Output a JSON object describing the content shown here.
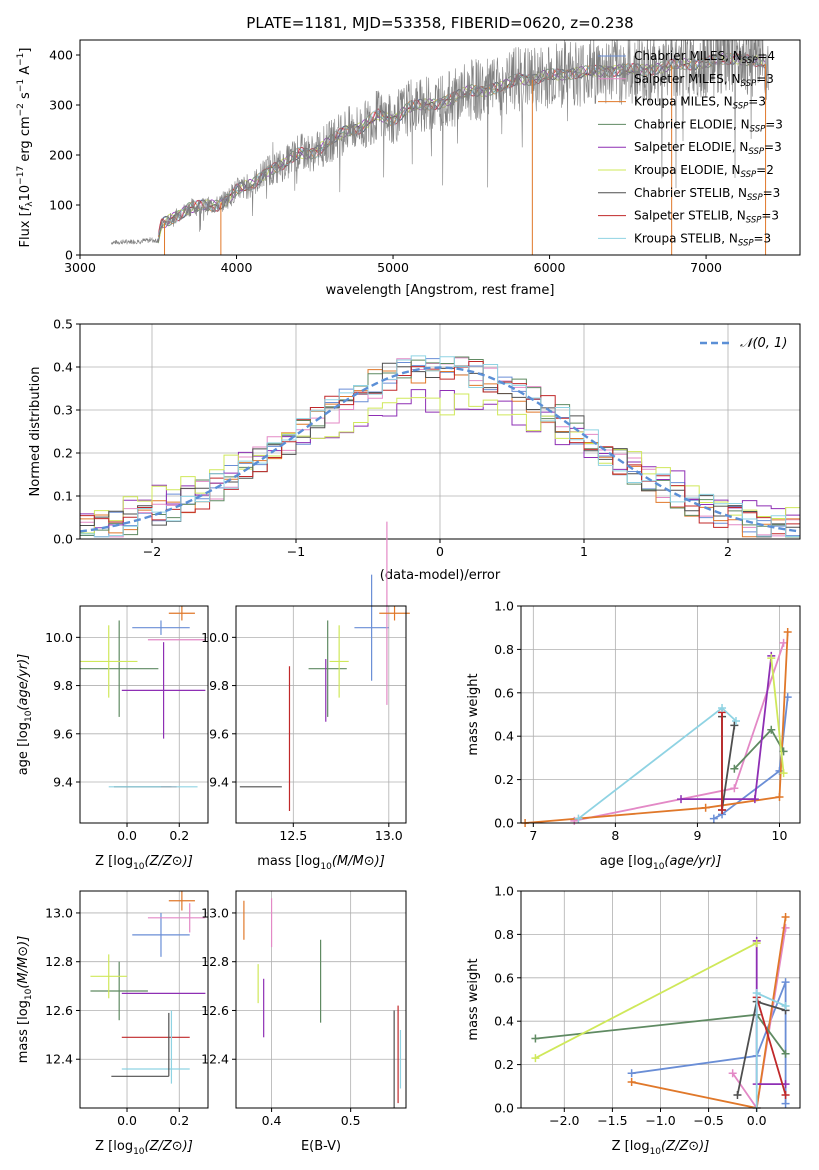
{
  "figure_title": "PLATE=1181, MJD=53358, FIBERID=0620, z=0.238",
  "colors": {
    "Chabrier MILES": "#6a8ed6",
    "Salpeter MILES": "#e389c6",
    "Kroupa MILES": "#e0782a",
    "Chabrier ELODIE": "#5f8a62",
    "Salpeter ELODIE": "#8e2fb4",
    "Kroupa ELODIE": "#cfe85a",
    "Chabrier STELIB": "#4f4f4f",
    "Salpeter STELIB": "#c0282a",
    "Kroupa STELIB": "#8fd3e3"
  },
  "chart_data": [
    {
      "id": "spectrum",
      "type": "line",
      "xlabel": "wavelength [Angstrom, rest frame]",
      "ylabel_parts": [
        "Flux [",
        "f",
        "λ",
        "10",
        "−17",
        " erg cm",
        "−2",
        " s",
        "−1",
        " A",
        "−1",
        "]"
      ],
      "xlim": [
        3000,
        7600
      ],
      "ylim": [
        0,
        430
      ],
      "xticks": [
        3000,
        4000,
        5000,
        6000,
        7000
      ],
      "yticks": [
        0,
        100,
        200,
        300,
        400
      ],
      "legend_position": "top-right",
      "series": [
        {
          "name": "Chabrier MILES",
          "nssp": "4"
        },
        {
          "name": "Salpeter MILES",
          "nssp": "3"
        },
        {
          "name": "Kroupa MILES",
          "nssp": "3"
        },
        {
          "name": "Chabrier ELODIE",
          "nssp": "3"
        },
        {
          "name": "Salpeter ELODIE",
          "nssp": "3"
        },
        {
          "name": "Kroupa ELODIE",
          "nssp": "2"
        },
        {
          "name": "Chabrier STELIB",
          "nssp": "3"
        },
        {
          "name": "Salpeter STELIB",
          "nssp": "3"
        },
        {
          "name": "Kroupa STELIB",
          "nssp": "3"
        }
      ],
      "observed_envelope": {
        "x": [
          3200,
          3500,
          3520,
          3700,
          3880,
          3950,
          4000,
          4100,
          4200,
          4300,
          4400,
          4500,
          4700,
          4800,
          4900,
          5000,
          5100,
          5200,
          5300,
          5400,
          5500,
          5600,
          5700,
          5800,
          5900,
          6000,
          6200,
          6400,
          6600,
          6800,
          7000,
          7200,
          7400
        ],
        "y": [
          25,
          30,
          60,
          95,
          100,
          115,
          130,
          140,
          170,
          180,
          205,
          205,
          250,
          255,
          280,
          270,
          295,
          300,
          305,
          315,
          330,
          330,
          335,
          355,
          350,
          360,
          365,
          370,
          370,
          380,
          385,
          395,
          380
        ]
      },
      "model_start_x": 3500,
      "model_end_x": 7380
    },
    {
      "id": "residuals",
      "type": "bar",
      "xlabel": "(data-model)/error",
      "ylabel": "Normed distribution",
      "xlim": [
        -2.5,
        2.5
      ],
      "ylim": [
        0,
        0.5
      ],
      "xticks": [
        -2,
        -1,
        0,
        1,
        2
      ],
      "xtick_labels": [
        "−2",
        "−1",
        "0",
        "1",
        "2"
      ],
      "yticks": [
        0.0,
        0.1,
        0.2,
        0.3,
        0.4,
        0.5
      ],
      "legend": "𝒩(0, 1)",
      "legend_position": "top-right",
      "gaussian": {
        "mean": 0,
        "sigma": 1
      }
    },
    {
      "id": "Z-age",
      "type": "scatter",
      "xlabel": "Z [log10(Z/Z⊙)]",
      "ylabel": "age  [log10(age/yr)]",
      "xlim": [
        -0.18,
        0.31
      ],
      "ylim": [
        9.23,
        10.13
      ],
      "xticks": [
        0.0,
        0.2
      ],
      "yticks": [
        9.4,
        9.6,
        9.8,
        10.0
      ],
      "points": [
        {
          "series": "Chabrier MILES",
          "x": 0.13,
          "y": 10.04,
          "xerr": 0.11,
          "yerr": 0.03
        },
        {
          "series": "Salpeter MILES",
          "x": 0.19,
          "y": 9.99,
          "xerr": 0.11,
          "yerr": 0.0
        },
        {
          "series": "Kroupa MILES",
          "x": 0.21,
          "y": 10.1,
          "xerr": 0.05,
          "yerr": 0.03
        },
        {
          "series": "Chabrier ELODIE",
          "x": -0.03,
          "y": 9.87,
          "xerr": 0.15,
          "yerr": 0.2
        },
        {
          "series": "Salpeter ELODIE",
          "x": 0.14,
          "y": 9.78,
          "xerr": 0.16,
          "yerr": 0.2
        },
        {
          "series": "Kroupa ELODIE",
          "x": -0.07,
          "y": 9.9,
          "xerr": 0.11,
          "yerr": 0.15
        },
        {
          "series": "Chabrier STELIB",
          "x": 0.06,
          "y": 9.38,
          "xerr": 0.11,
          "yerr": 0.0
        },
        {
          "series": "Salpeter STELIB",
          "x": 0.16,
          "y": 9.38,
          "xerr": 0.03,
          "yerr": 0.0
        },
        {
          "series": "Kroupa STELIB",
          "x": 0.1,
          "y": 9.38,
          "xerr": 0.17,
          "yerr": 0.0
        }
      ]
    },
    {
      "id": "mass-age",
      "type": "scatter",
      "xlabel": "mass [log10(M/M⊙)]",
      "ylabel": "",
      "xlim": [
        12.2,
        13.09
      ],
      "ylim": [
        9.23,
        10.13
      ],
      "xticks": [
        12.5,
        13.0
      ],
      "yticks": [
        9.4,
        9.6,
        9.8,
        10.0
      ],
      "points": [
        {
          "series": "Chabrier MILES",
          "x": 12.91,
          "y": 10.04,
          "xerr": 0.09,
          "yerr": 0.22
        },
        {
          "series": "Salpeter MILES",
          "x": 12.99,
          "y": 10.1,
          "xerr": 0.0,
          "yerr": 0.38
        },
        {
          "series": "Kroupa MILES",
          "x": 13.03,
          "y": 10.1,
          "xerr": 0.08,
          "yerr": 0.03
        },
        {
          "series": "Chabrier ELODIE",
          "x": 12.68,
          "y": 9.87,
          "xerr": 0.1,
          "yerr": 0.2
        },
        {
          "series": "Salpeter ELODIE",
          "x": 12.67,
          "y": 9.78,
          "xerr": 0.0,
          "yerr": 0.13
        },
        {
          "series": "Kroupa ELODIE",
          "x": 12.74,
          "y": 9.9,
          "xerr": 0.05,
          "yerr": 0.15
        },
        {
          "series": "Chabrier STELIB",
          "x": 12.33,
          "y": 9.38,
          "xerr": 0.11,
          "yerr": 0.0
        },
        {
          "series": "Salpeter STELIB",
          "x": 12.48,
          "y": 9.58,
          "xerr": 0.0,
          "yerr": 0.3
        },
        {
          "series": "Kroupa STELIB",
          "x": 12.35,
          "y": 9.38,
          "xerr": 0.0,
          "yerr": 0.0
        }
      ]
    },
    {
      "id": "age-weight",
      "type": "line",
      "xlabel": "age  [log10(age/yr)]",
      "ylabel": "mass weight",
      "xlim": [
        6.85,
        10.25
      ],
      "ylim": [
        0.0,
        1.0
      ],
      "xticks": [
        7,
        8,
        9,
        10
      ],
      "yticks": [
        0.0,
        0.2,
        0.4,
        0.6,
        0.8,
        1.0
      ],
      "series": [
        {
          "name": "Chabrier MILES",
          "x": [
            9.2,
            9.3,
            10.0,
            10.1
          ],
          "y": [
            0.02,
            0.04,
            0.24,
            0.58
          ]
        },
        {
          "name": "Salpeter MILES",
          "x": [
            7.5,
            9.45,
            10.05
          ],
          "y": [
            0.01,
            0.16,
            0.83
          ]
        },
        {
          "name": "Kroupa MILES",
          "x": [
            6.9,
            9.1,
            10.0,
            10.1
          ],
          "y": [
            0.0,
            0.07,
            0.12,
            0.88
          ]
        },
        {
          "name": "Chabrier ELODIE",
          "x": [
            9.45,
            9.9,
            10.05
          ],
          "y": [
            0.25,
            0.43,
            0.33
          ]
        },
        {
          "name": "Salpeter ELODIE",
          "x": [
            8.8,
            9.7,
            9.9
          ],
          "y": [
            0.11,
            0.11,
            0.77
          ]
        },
        {
          "name": "Kroupa ELODIE",
          "x": [
            9.9,
            10.05
          ],
          "y": [
            0.76,
            0.23
          ]
        },
        {
          "name": "Chabrier STELIB",
          "x": [
            9.3,
            9.3,
            9.45
          ],
          "y": [
            0.49,
            0.06,
            0.45
          ]
        },
        {
          "name": "Salpeter STELIB",
          "x": [
            9.3,
            9.3
          ],
          "y": [
            0.51,
            0.06
          ]
        },
        {
          "name": "Kroupa STELIB",
          "x": [
            7.55,
            9.3,
            9.47
          ],
          "y": [
            0.02,
            0.53,
            0.47
          ]
        }
      ]
    },
    {
      "id": "Z-mass",
      "type": "scatter",
      "xlabel": "Z [log10(Z/Z⊙)]",
      "ylabel": "mass [log10(M/M⊙)]",
      "xlim": [
        -0.18,
        0.31
      ],
      "ylim": [
        12.2,
        13.09
      ],
      "xticks": [
        0.0,
        0.2
      ],
      "yticks": [
        12.4,
        12.6,
        12.8,
        13.0
      ],
      "points": [
        {
          "series": "Chabrier MILES",
          "x": 0.13,
          "y": 12.91,
          "xerr": 0.11,
          "yerr": 0.09
        },
        {
          "series": "Salpeter MILES",
          "x": 0.19,
          "y": 12.98,
          "xerr": 0.11,
          "yerr": 0.0
        },
        {
          "series": "Kroupa MILES",
          "x": 0.21,
          "y": 13.05,
          "xerr": 0.05,
          "yerr": 0.04
        },
        {
          "series": "Chabrier ELODIE",
          "x": -0.03,
          "y": 12.68,
          "xerr": 0.11,
          "yerr": 0.12
        },
        {
          "series": "Salpeter ELODIE",
          "x": 0.14,
          "y": 12.67,
          "xerr": 0.16,
          "yerr": 0.0
        },
        {
          "series": "Kroupa ELODIE",
          "x": -0.07,
          "y": 12.74,
          "xerr": 0.07,
          "yerr": 0.09
        },
        {
          "series": "Chabrier STELIB",
          "x": 0.05,
          "y": 12.33,
          "xerr": 0.11,
          "yerr": 0.0
        },
        {
          "series": "Salpeter STELIB",
          "x": 0.11,
          "y": 12.49,
          "xerr": 0.13,
          "yerr": 0.0
        },
        {
          "series": "Kroupa STELIB",
          "x": 0.11,
          "y": 12.36,
          "xerr": 0.13,
          "yerr": 0.0
        },
        {
          "series": "Chabrier STELIB",
          "x": 0.16,
          "y": 12.46,
          "xerr": 0.0,
          "yerr": 0.13
        },
        {
          "series": "Kroupa STELIB",
          "x": 0.17,
          "y": 12.45,
          "xerr": 0.0,
          "yerr": 0.15
        },
        {
          "series": "Salpeter MILES",
          "x": 0.24,
          "y": 12.98,
          "xerr": 0.0,
          "yerr": 0.06
        }
      ]
    },
    {
      "id": "ebv-mass",
      "type": "scatter",
      "xlabel": "E(B-V)",
      "ylabel": "",
      "xlim": [
        0.355,
        0.57
      ],
      "ylim": [
        12.2,
        13.09
      ],
      "xticks": [
        0.4,
        0.5
      ],
      "yticks": [
        12.4,
        12.6,
        12.8,
        13.0
      ],
      "points": [
        {
          "series": "Kroupa MILES",
          "x": 0.365,
          "y": 12.97,
          "xerr": 0.0,
          "yerr": 0.08
        },
        {
          "series": "Salpeter MILES",
          "x": 0.4,
          "y": 12.96,
          "xerr": 0.0,
          "yerr": 0.1
        },
        {
          "series": "Kroupa ELODIE",
          "x": 0.383,
          "y": 12.71,
          "xerr": 0.0,
          "yerr": 0.08
        },
        {
          "series": "Salpeter ELODIE",
          "x": 0.39,
          "y": 12.61,
          "xerr": 0.0,
          "yerr": 0.12
        },
        {
          "series": "Chabrier ELODIE",
          "x": 0.462,
          "y": 12.72,
          "xerr": 0.0,
          "yerr": 0.17
        },
        {
          "series": "Chabrier STELIB",
          "x": 0.555,
          "y": 12.4,
          "xerr": 0.0,
          "yerr": 0.2
        },
        {
          "series": "Salpeter STELIB",
          "x": 0.56,
          "y": 12.42,
          "xerr": 0.0,
          "yerr": 0.2
        },
        {
          "series": "Kroupa STELIB",
          "x": 0.563,
          "y": 12.4,
          "xerr": 0.0,
          "yerr": 0.12
        }
      ]
    },
    {
      "id": "Z-weight",
      "type": "line",
      "xlabel": "Z [log10(Z/Z⊙)]",
      "ylabel": "mass weight",
      "xlim": [
        -2.45,
        0.45
      ],
      "ylim": [
        0.0,
        1.0
      ],
      "xticks": [
        -2.0,
        -1.5,
        -1.0,
        -0.5,
        0.0
      ],
      "xtick_labels": [
        "−2.0",
        "−1.5",
        "−1.0",
        "−0.5",
        "0.0"
      ],
      "yticks": [
        0.0,
        0.2,
        0.4,
        0.6,
        0.8,
        1.0
      ],
      "series": [
        {
          "name": "Chabrier MILES",
          "x": [
            -1.3,
            0.0,
            0.3,
            0.3
          ],
          "y": [
            0.16,
            0.24,
            0.58,
            0.02
          ]
        },
        {
          "name": "Salpeter MILES",
          "x": [
            -0.25,
            0.0,
            0.3
          ],
          "y": [
            0.16,
            0.0,
            0.83
          ]
        },
        {
          "name": "Kroupa MILES",
          "x": [
            -1.3,
            0.0,
            0.3
          ],
          "y": [
            0.12,
            0.0,
            0.88
          ]
        },
        {
          "name": "Chabrier ELODIE",
          "x": [
            -2.3,
            0.0,
            0.3
          ],
          "y": [
            0.32,
            0.43,
            0.25
          ]
        },
        {
          "name": "Salpeter ELODIE",
          "x": [
            0.0,
            0.0,
            0.3
          ],
          "y": [
            0.77,
            0.11,
            0.11
          ]
        },
        {
          "name": "Kroupa ELODIE",
          "x": [
            -2.3,
            0.0
          ],
          "y": [
            0.23,
            0.76
          ]
        },
        {
          "name": "Chabrier STELIB",
          "x": [
            -0.2,
            0.0,
            0.3
          ],
          "y": [
            0.06,
            0.49,
            0.45
          ]
        },
        {
          "name": "Salpeter STELIB",
          "x": [
            0.0,
            0.3
          ],
          "y": [
            0.51,
            0.06
          ]
        },
        {
          "name": "Kroupa STELIB",
          "x": [
            0.0,
            0.0,
            0.3
          ],
          "y": [
            0.0,
            0.53,
            0.47
          ]
        }
      ]
    }
  ]
}
